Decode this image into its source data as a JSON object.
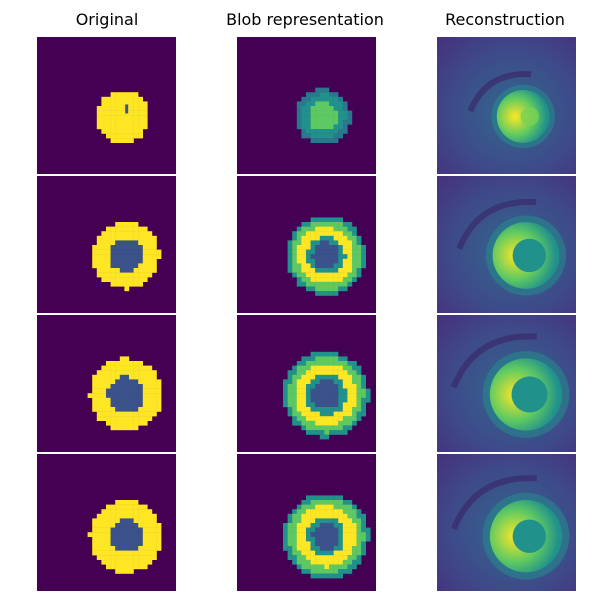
{
  "columns": [
    {
      "key": "orig",
      "title": "Original"
    },
    {
      "key": "blob",
      "title": "Blob representation"
    },
    {
      "key": "recon",
      "title": "Reconstruction"
    }
  ],
  "rows": 4,
  "colors": {
    "background_purple": "#440154",
    "yellow": "#fde725",
    "blue_patch": "#3b528b",
    "teal": "#21918c",
    "green": "#5ec962",
    "recon_bg": "#3b5a8a"
  }
}
